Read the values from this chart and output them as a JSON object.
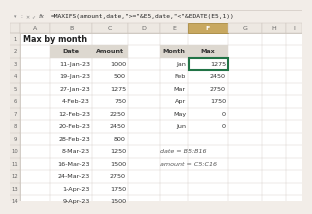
{
  "formula_bar_text": "=MAXIFS(amount,date,\">=\"&E5,date,\"<\"&EDATE(E5,1))",
  "title": "Max by month",
  "col_headers_left": [
    "Date",
    "Amount"
  ],
  "left_table": [
    [
      "11-Jan-23",
      1000
    ],
    [
      "19-Jan-23",
      500
    ],
    [
      "27-Jan-23",
      1275
    ],
    [
      "4-Feb-23",
      750
    ],
    [
      "12-Feb-23",
      2250
    ],
    [
      "20-Feb-23",
      2450
    ],
    [
      "28-Feb-23",
      800
    ],
    [
      "8-Mar-23",
      1250
    ],
    [
      "16-Mar-23",
      1500
    ],
    [
      "24-Mar-23",
      2750
    ],
    [
      "1-Apr-23",
      1750
    ],
    [
      "9-Apr-23",
      1500
    ]
  ],
  "col_headers_right": [
    "Month",
    "Max"
  ],
  "right_table": [
    [
      "Jan",
      1275
    ],
    [
      "Feb",
      2450
    ],
    [
      "Mar",
      2750
    ],
    [
      "Apr",
      1750
    ],
    [
      "May",
      0
    ],
    [
      "Jun",
      0
    ]
  ],
  "named_ranges": [
    "date = B5:B16",
    "amount = C5:C16"
  ],
  "bg_color": "#f2ede8",
  "sheet_bg": "#ffffff",
  "formula_bar_bg": "#f2ede8",
  "col_header_bg": "#ede8e2",
  "col_header_selected_bg": "#c8a860",
  "selected_cell_border": "#217346",
  "grid_line_color": "#d4cdc6",
  "table_header_bg": "#ddd8d0",
  "title_fontsize": 5.8,
  "table_fontsize": 4.6,
  "formula_fontsize": 4.5,
  "annot_fontsize": 4.6
}
